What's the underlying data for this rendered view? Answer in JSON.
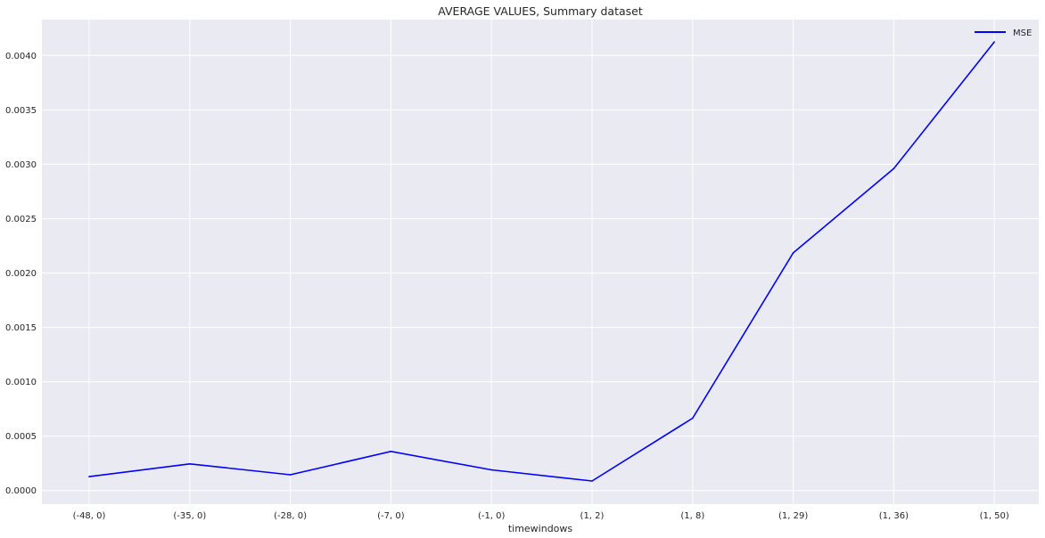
{
  "chart_data": {
    "type": "line",
    "title": "AVERAGE VALUES, Summary dataset",
    "xlabel": "timewindows",
    "ylabel": "",
    "categories": [
      "(-48, 0)",
      "(-35, 0)",
      "(-28, 0)",
      "(-7, 0)",
      "(-1, 0)",
      "(1, 2)",
      "(1, 8)",
      "(1, 29)",
      "(1, 36)",
      "(1, 50)"
    ],
    "series": [
      {
        "name": "MSE",
        "color": "#0000ff",
        "values": [
          0.000128,
          0.000245,
          0.000145,
          0.00036,
          0.00019,
          8.8e-05,
          0.000665,
          0.002185,
          0.00296,
          0.004125
        ]
      }
    ],
    "yticks": [
      0.0,
      0.0005,
      0.001,
      0.0015,
      0.002,
      0.0025,
      0.003,
      0.0035,
      0.004
    ],
    "ytick_labels": [
      "0.0000",
      "0.0005",
      "0.0010",
      "0.0015",
      "0.0020",
      "0.0025",
      "0.0030",
      "0.0035",
      "0.0040"
    ],
    "ylim": [
      -0.000125,
      0.00433
    ],
    "grid": true,
    "legend_position": "top-right",
    "background": "#eaeaf2",
    "grid_color": "#ffffff"
  }
}
